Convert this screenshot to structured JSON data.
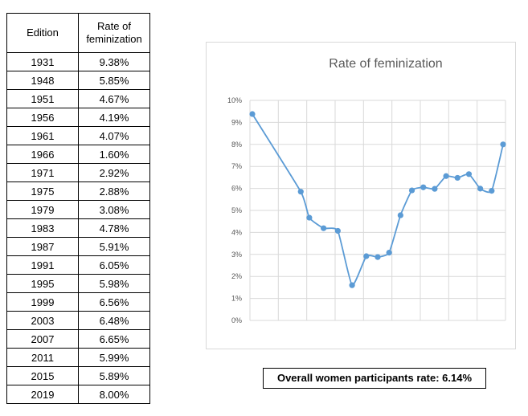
{
  "table": {
    "headers": {
      "edition": "Edition",
      "rate": "Rate of feminization"
    },
    "rows": [
      {
        "edition": "1931",
        "rate": "9.38%"
      },
      {
        "edition": "1948",
        "rate": "5.85%"
      },
      {
        "edition": "1951",
        "rate": "4.67%"
      },
      {
        "edition": "1956",
        "rate": "4.19%"
      },
      {
        "edition": "1961",
        "rate": "4.07%"
      },
      {
        "edition": "1966",
        "rate": "1.60%"
      },
      {
        "edition": "1971",
        "rate": "2.92%"
      },
      {
        "edition": "1975",
        "rate": "2.88%"
      },
      {
        "edition": "1979",
        "rate": "3.08%"
      },
      {
        "edition": "1983",
        "rate": "4.78%"
      },
      {
        "edition": "1987",
        "rate": "5.91%"
      },
      {
        "edition": "1991",
        "rate": "6.05%"
      },
      {
        "edition": "1995",
        "rate": "5.98%"
      },
      {
        "edition": "1999",
        "rate": "6.56%"
      },
      {
        "edition": "2003",
        "rate": "6.48%"
      },
      {
        "edition": "2007",
        "rate": "6.65%"
      },
      {
        "edition": "2011",
        "rate": "5.99%"
      },
      {
        "edition": "2015",
        "rate": "5.89%"
      },
      {
        "edition": "2019",
        "rate": "8.00%"
      }
    ]
  },
  "chart_data": {
    "type": "line",
    "title": "Rate of feminization",
    "xlabel": "",
    "ylabel": "",
    "x": [
      1931,
      1948,
      1951,
      1956,
      1961,
      1966,
      1971,
      1975,
      1979,
      1983,
      1987,
      1991,
      1995,
      1999,
      2003,
      2007,
      2011,
      2015,
      2019
    ],
    "values": [
      9.38,
      5.85,
      4.67,
      4.19,
      4.07,
      1.6,
      2.92,
      2.88,
      3.08,
      4.78,
      5.91,
      6.05,
      5.98,
      6.56,
      6.48,
      6.65,
      5.99,
      5.89,
      8.0
    ],
    "ylim": [
      0,
      10
    ],
    "y_ticks": [
      "0%",
      "1%",
      "2%",
      "3%",
      "4%",
      "5%",
      "6%",
      "7%",
      "8%",
      "9%",
      "10%"
    ],
    "grid": true,
    "smooth": true,
    "colors": {
      "line": "#5b9bd5",
      "grid": "#d9d9d9",
      "title": "#595959",
      "tick": "#595959"
    }
  },
  "overall": {
    "label": "Overall women participants rate: 6.14%"
  }
}
